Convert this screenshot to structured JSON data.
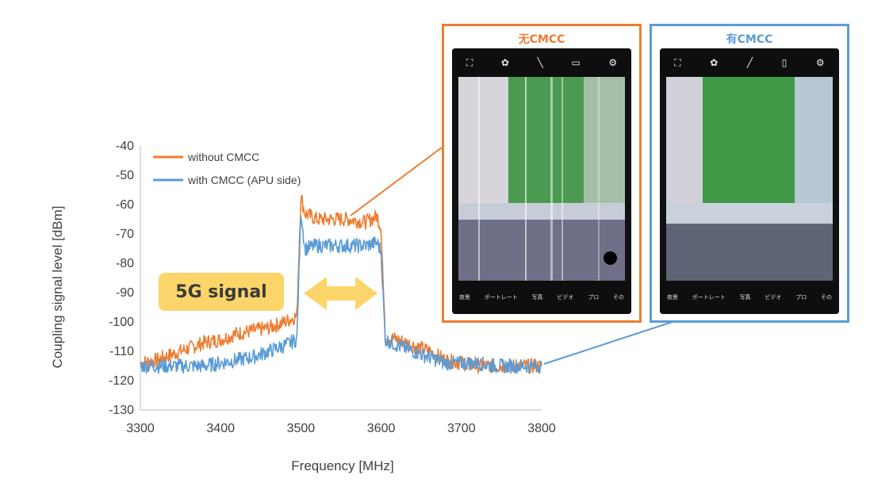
{
  "chart_data": {
    "type": "line",
    "xlabel": "Frequency [MHz]",
    "ylabel": "Coupling signal level [dBm]",
    "xlim": [
      3300,
      3800
    ],
    "ylim": [
      -130,
      -40
    ],
    "xticks": [
      "3300",
      "3400",
      "3500",
      "3600",
      "3700",
      "3800"
    ],
    "yticks": [
      "-40",
      "-50",
      "-60",
      "-70",
      "-80",
      "-90",
      "-100",
      "-110",
      "-120",
      "-130"
    ],
    "legend_position": "top-left",
    "series": [
      {
        "name": "without CMCC",
        "color": "#ed7d31",
        "x": [
          3300,
          3320,
          3340,
          3360,
          3380,
          3400,
          3420,
          3440,
          3460,
          3480,
          3495,
          3500,
          3505,
          3520,
          3540,
          3560,
          3580,
          3595,
          3600,
          3605,
          3620,
          3640,
          3660,
          3680,
          3700,
          3720,
          3740,
          3760,
          3780,
          3800
        ],
        "y": [
          -114,
          -113,
          -111,
          -109,
          -107,
          -106,
          -104,
          -103,
          -102,
          -100,
          -98,
          -57,
          -63,
          -65,
          -65,
          -65,
          -66,
          -64,
          -68,
          -105,
          -106,
          -108,
          -110,
          -113,
          -114,
          -115,
          -115,
          -115,
          -115,
          -115
        ]
      },
      {
        "name": "with CMCC (APU side)",
        "color": "#5b9bd5",
        "x": [
          3300,
          3320,
          3340,
          3360,
          3380,
          3400,
          3420,
          3440,
          3460,
          3480,
          3495,
          3500,
          3505,
          3520,
          3540,
          3560,
          3580,
          3595,
          3600,
          3605,
          3620,
          3640,
          3660,
          3680,
          3700,
          3720,
          3740,
          3760,
          3780,
          3800
        ],
        "y": [
          -115,
          -115,
          -115,
          -115,
          -115,
          -114,
          -113,
          -112,
          -110,
          -108,
          -106,
          -62,
          -75,
          -74,
          -74,
          -74,
          -74,
          -73,
          -76,
          -106,
          -108,
          -110,
          -112,
          -114,
          -114,
          -114,
          -115,
          -115,
          -115,
          -115
        ]
      }
    ]
  },
  "annotation": {
    "badge": "5G signal"
  },
  "panels": [
    {
      "title": "无CMCC",
      "color": "#ed7d31",
      "bottom_labels": [
        "夜景",
        "ポートレート",
        "写真",
        "ビデオ",
        "プロ",
        "その"
      ]
    },
    {
      "title": "有CMCC",
      "color": "#5b9bd5",
      "bottom_labels": [
        "夜景",
        "ポートレート",
        "写真",
        "ビデオ",
        "プロ",
        "その"
      ]
    }
  ]
}
